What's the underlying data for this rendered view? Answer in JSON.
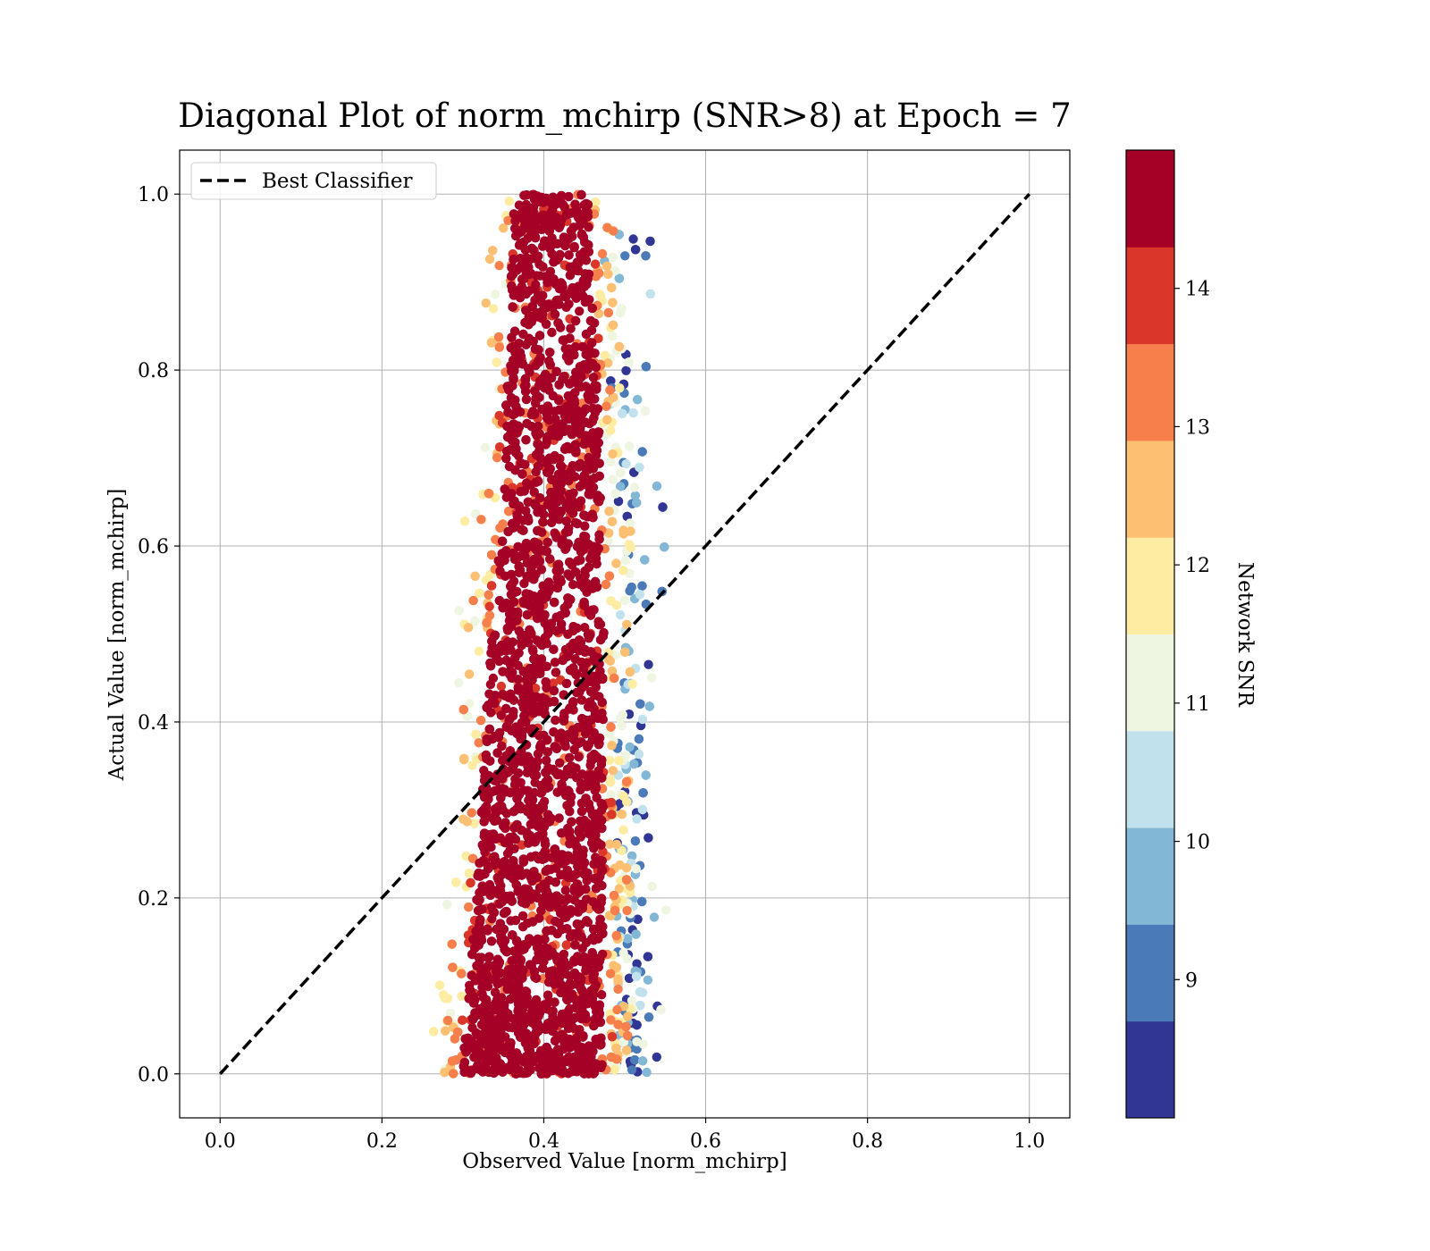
{
  "chart_data": {
    "type": "scatter",
    "title": "Diagonal Plot of norm_mchirp (SNR>8) at Epoch = 7",
    "xlabel": "Observed Value [norm_mchirp]",
    "ylabel": "Actual Value [norm_mchirp]",
    "xlim": [
      -0.05,
      1.05
    ],
    "ylim": [
      -0.05,
      1.05
    ],
    "x_ticks": [
      "0.0",
      "0.2",
      "0.4",
      "0.6",
      "0.8",
      "1.0"
    ],
    "y_ticks": [
      "0.0",
      "0.2",
      "0.4",
      "0.6",
      "0.8",
      "1.0"
    ],
    "grid": true,
    "legend": {
      "placement": "upper-left",
      "entries": [
        "Best Classifier"
      ]
    },
    "reference_line": {
      "name": "Best Classifier",
      "x": [
        0.0,
        1.0
      ],
      "y": [
        0.0,
        1.0
      ],
      "style": "dashed",
      "color": "#000000"
    },
    "colorbar": {
      "label": "Network SNR",
      "range": [
        8.0,
        15.0
      ],
      "tick_labels": [
        "9",
        "10",
        "11",
        "12",
        "13",
        "14"
      ],
      "bins": [
        {
          "from": 8.0,
          "to": 8.7,
          "color": "#313695"
        },
        {
          "from": 8.7,
          "to": 9.4,
          "color": "#4a7ab7"
        },
        {
          "from": 9.4,
          "to": 10.1,
          "color": "#82b7d6"
        },
        {
          "from": 10.1,
          "to": 10.8,
          "color": "#c1e2ec"
        },
        {
          "from": 10.8,
          "to": 11.5,
          "color": "#eef6e1"
        },
        {
          "from": 11.5,
          "to": 12.2,
          "color": "#feeca2"
        },
        {
          "from": 12.2,
          "to": 12.9,
          "color": "#fdbf71"
        },
        {
          "from": 12.9,
          "to": 13.6,
          "color": "#f67f4b"
        },
        {
          "from": 13.6,
          "to": 14.3,
          "color": "#da372a"
        },
        {
          "from": 14.3,
          "to": 15.0,
          "color": "#a50026"
        }
      ]
    },
    "scatter_band": {
      "description": "Dense scatter of points; observed values cluster around 0.4 regardless of actual value",
      "y_range": [
        0.0,
        1.0
      ],
      "core": [
        {
          "y": 0.0,
          "x_from": 0.29,
          "x_to": 0.48
        },
        {
          "y": 0.2,
          "x_from": 0.31,
          "x_to": 0.48
        },
        {
          "y": 0.4,
          "x_from": 0.32,
          "x_to": 0.48
        },
        {
          "y": 0.6,
          "x_from": 0.34,
          "x_to": 0.48
        },
        {
          "y": 0.8,
          "x_from": 0.35,
          "x_to": 0.47
        },
        {
          "y": 1.0,
          "x_from": 0.36,
          "x_to": 0.46
        }
      ],
      "outer_x_range": [
        0.26,
        0.58
      ]
    }
  }
}
